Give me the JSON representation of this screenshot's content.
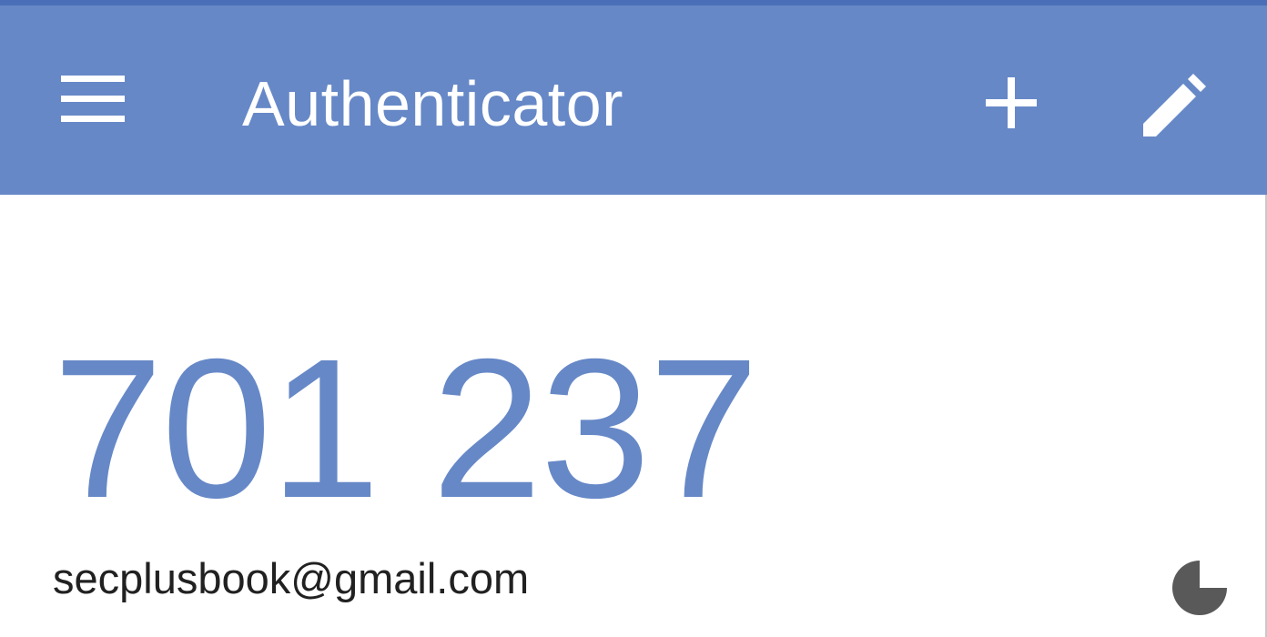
{
  "colors": {
    "primary": "#6688c7",
    "status_bar": "#4a6fb8",
    "text": "#212121",
    "timer": "#595959"
  },
  "toolbar": {
    "title": "Authenticator",
    "menu_icon": "hamburger-menu-icon",
    "add_icon": "plus-icon",
    "edit_icon": "pencil-icon"
  },
  "accounts": [
    {
      "code": "701 237",
      "email": "secplusbook@gmail.com",
      "timer_icon": "countdown-pie-icon",
      "timer_remaining_fraction": 0.75
    }
  ]
}
